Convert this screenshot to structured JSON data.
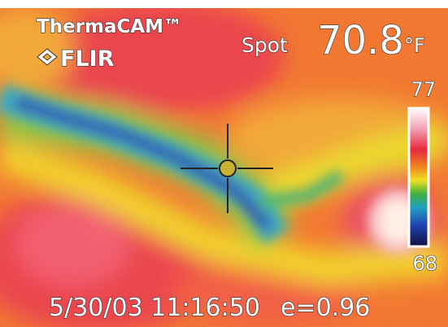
{
  "brand": {
    "product": "ThermaCAM™",
    "maker": "FLIR"
  },
  "spot": {
    "label": "Spot",
    "reading": "70.8",
    "unit": "°F"
  },
  "scale": {
    "max": "77",
    "min": "68"
  },
  "footer": {
    "timestamp": "5/30/03 11:16:50",
    "emissivity": "e=0.96"
  }
}
